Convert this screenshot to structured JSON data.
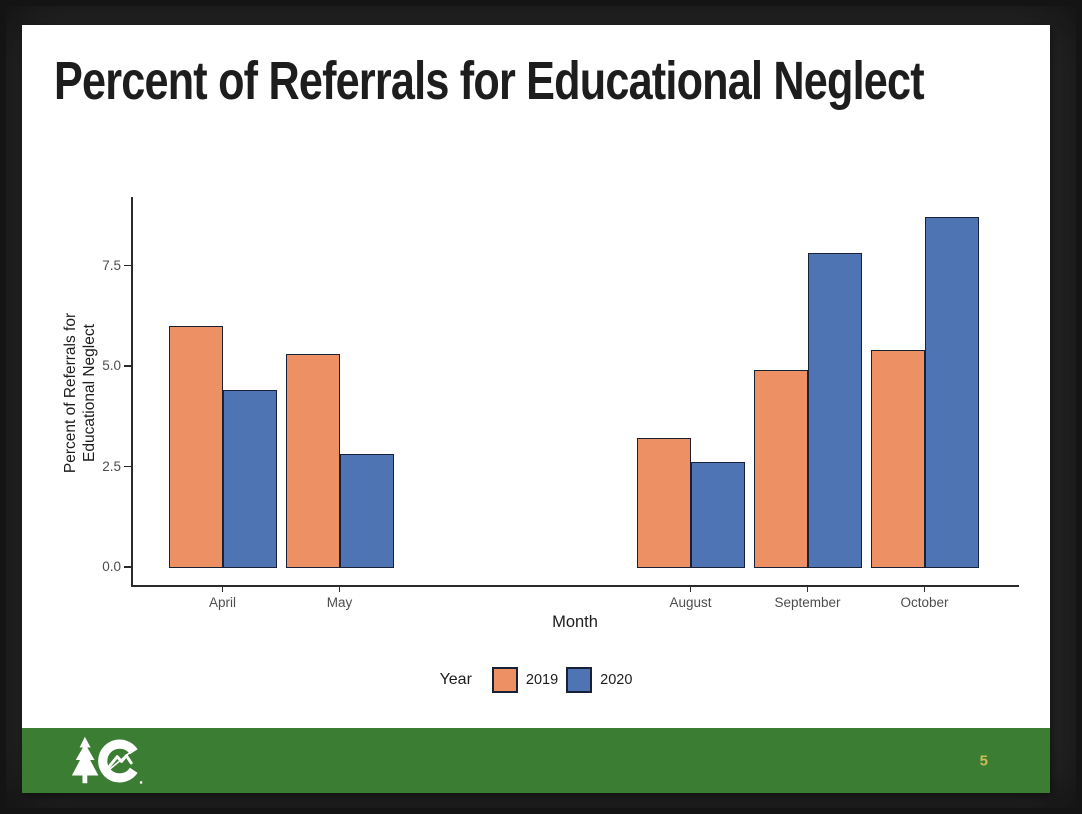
{
  "slide": {
    "title": "Percent of Referrals for Educational Neglect",
    "page_number": "5"
  },
  "footer": {
    "background_color": "#3A7D33",
    "page_number_color": "#CDBA55",
    "logo": "colorado-state-logo"
  },
  "chart_data": {
    "type": "bar",
    "title": "Percent of Referrals for Educational Neglect",
    "categories": [
      "April",
      "May",
      "August",
      "September",
      "October"
    ],
    "category_slots": [
      0,
      1,
      4,
      5,
      6
    ],
    "series": [
      {
        "name": "2019",
        "color": "#ED9164",
        "values": [
          6.0,
          5.3,
          3.2,
          4.9,
          5.4
        ]
      },
      {
        "name": "2020",
        "color": "#4E74B3",
        "values": [
          4.4,
          2.8,
          2.6,
          7.8,
          8.7
        ]
      }
    ],
    "xlabel": "Month",
    "ylabel_lines": [
      "Percent of Referrals for",
      "Educational Neglect"
    ],
    "yticks": [
      "0.0",
      "2.5",
      "5.0",
      "7.5"
    ],
    "ylim": [
      0,
      9.3
    ],
    "legend_title": "Year",
    "legend_position": "bottom",
    "grid": false,
    "bar_border_color": "#172238",
    "axis_color": "#2B2B2B",
    "tick_label_color": "#4D4D4D"
  }
}
